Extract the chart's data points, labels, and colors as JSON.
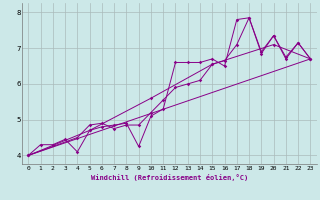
{
  "bg_color": "#cce8e8",
  "grid_color": "#aabbbb",
  "line_color": "#880088",
  "xlim": [
    -0.5,
    23.5
  ],
  "ylim": [
    3.75,
    8.25
  ],
  "yticks": [
    4,
    5,
    6,
    7,
    8
  ],
  "xticks": [
    0,
    1,
    2,
    3,
    4,
    5,
    6,
    7,
    8,
    9,
    10,
    11,
    12,
    13,
    14,
    15,
    16,
    17,
    18,
    19,
    20,
    21,
    22,
    23
  ],
  "xlabel": "Windchill (Refroidissement éolien,°C)",
  "series0_x": [
    0,
    1,
    2,
    3,
    4,
    5,
    6,
    7,
    8,
    9,
    10,
    11,
    12,
    13,
    14,
    15,
    16,
    17,
    18,
    19,
    20,
    21,
    22,
    23
  ],
  "series0_y": [
    4.0,
    4.3,
    4.3,
    4.45,
    4.1,
    4.7,
    4.8,
    4.85,
    4.9,
    4.25,
    5.1,
    5.3,
    6.6,
    6.6,
    6.6,
    6.7,
    6.5,
    7.8,
    7.85,
    6.85,
    7.35,
    6.7,
    7.15,
    6.7
  ],
  "series1_x": [
    0,
    5,
    10,
    15,
    20,
    23
  ],
  "series1_y": [
    4.0,
    4.7,
    5.6,
    6.55,
    7.1,
    6.7
  ],
  "series2_x": [
    0,
    23
  ],
  "series2_y": [
    4.0,
    6.7
  ],
  "series3_x": [
    0,
    4,
    5,
    6,
    7,
    8,
    9,
    10,
    11,
    12,
    13,
    14,
    15,
    16,
    17,
    18,
    19,
    20,
    21,
    22,
    23
  ],
  "series3_y": [
    4.0,
    4.5,
    4.85,
    4.9,
    4.75,
    4.85,
    4.85,
    5.2,
    5.55,
    5.9,
    6.0,
    6.1,
    6.55,
    6.65,
    7.1,
    7.85,
    6.9,
    7.35,
    6.75,
    7.15,
    6.7
  ],
  "title_fontsize": 5,
  "xlabel_fontsize": 5,
  "tick_fontsize": 4.5,
  "marker_size": 1.8,
  "line_width": 0.7
}
